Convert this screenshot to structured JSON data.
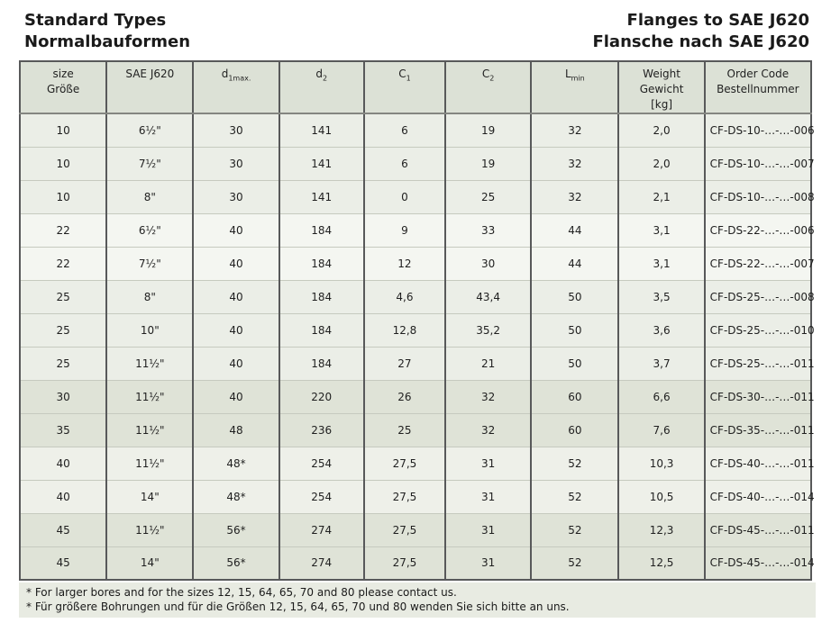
{
  "header": {
    "title_en": "Standard Types",
    "title_de": "Normalbauformen",
    "right_title_en": "Flanges to SAE J620",
    "right_title_de": "Flansche nach SAE J620"
  },
  "colors": {
    "header_bg": "#dce1d6",
    "border_dark": "#58595a",
    "row_separator": "#c6cabf",
    "footnote_bg": "#e8ebe2",
    "row_shades": {
      "light": "#ebeee7",
      "lighter": "#f4f6f1",
      "midlight": "#eef0e9",
      "dark": "#dfe3d7"
    }
  },
  "table": {
    "columns": [
      {
        "id": "size",
        "label_lines": [
          "size",
          "Größe"
        ]
      },
      {
        "id": "sae",
        "label_lines": [
          "SAE J620"
        ]
      },
      {
        "id": "d1max",
        "base": "d",
        "sub": "1max."
      },
      {
        "id": "d2",
        "base": "d",
        "sub": "2"
      },
      {
        "id": "c1",
        "base": "C",
        "sub": "1"
      },
      {
        "id": "c2",
        "base": "C",
        "sub": "2"
      },
      {
        "id": "lmin",
        "base": "L",
        "sub": "min"
      },
      {
        "id": "weight",
        "label_lines": [
          "Weight",
          "Gewicht",
          "[kg]"
        ]
      },
      {
        "id": "order",
        "label_lines": [
          "Order Code",
          "Bestellnummer"
        ]
      }
    ],
    "rows": [
      {
        "shade": "light",
        "cells": [
          "10",
          "6½\"",
          "30",
          "141",
          "6",
          "19",
          "32",
          "2,0",
          "CF-DS-10-…-…-006"
        ]
      },
      {
        "shade": "light",
        "cells": [
          "10",
          "7½\"",
          "30",
          "141",
          "6",
          "19",
          "32",
          "2,0",
          "CF-DS-10-…-…-007"
        ]
      },
      {
        "shade": "light",
        "cells": [
          "10",
          "8\"",
          "30",
          "141",
          "0",
          "25",
          "32",
          "2,1",
          "CF-DS-10-…-…-008"
        ]
      },
      {
        "shade": "lighter",
        "cells": [
          "22",
          "6½\"",
          "40",
          "184",
          "9",
          "33",
          "44",
          "3,1",
          "CF-DS-22-…-…-006"
        ]
      },
      {
        "shade": "lighter",
        "cells": [
          "22",
          "7½\"",
          "40",
          "184",
          "12",
          "30",
          "44",
          "3,1",
          "CF-DS-22-…-…-007"
        ]
      },
      {
        "shade": "light",
        "cells": [
          "25",
          "8\"",
          "40",
          "184",
          "4,6",
          "43,4",
          "50",
          "3,5",
          "CF-DS-25-…-…-008"
        ]
      },
      {
        "shade": "light",
        "cells": [
          "25",
          "10\"",
          "40",
          "184",
          "12,8",
          "35,2",
          "50",
          "3,6",
          "CF-DS-25-…-…-010"
        ]
      },
      {
        "shade": "light",
        "cells": [
          "25",
          "11½\"",
          "40",
          "184",
          "27",
          "21",
          "50",
          "3,7",
          "CF-DS-25-…-…-011"
        ]
      },
      {
        "shade": "dark",
        "cells": [
          "30",
          "11½\"",
          "40",
          "220",
          "26",
          "32",
          "60",
          "6,6",
          "CF-DS-30-…-…-011"
        ]
      },
      {
        "shade": "dark",
        "cells": [
          "35",
          "11½\"",
          "48",
          "236",
          "25",
          "32",
          "60",
          "7,6",
          "CF-DS-35-…-…-011"
        ]
      },
      {
        "shade": "midlight",
        "cells": [
          "40",
          "11½\"",
          "48*",
          "254",
          "27,5",
          "31",
          "52",
          "10,3",
          "CF-DS-40-…-…-011"
        ]
      },
      {
        "shade": "midlight",
        "cells": [
          "40",
          "14\"",
          "48*",
          "254",
          "27,5",
          "31",
          "52",
          "10,5",
          "CF-DS-40-…-…-014"
        ]
      },
      {
        "shade": "dark",
        "cells": [
          "45",
          "11½\"",
          "56*",
          "274",
          "27,5",
          "31",
          "52",
          "12,3",
          "CF-DS-45-…-…-011"
        ]
      },
      {
        "shade": "dark",
        "cells": [
          "45",
          "14\"",
          "56*",
          "274",
          "27,5",
          "31",
          "52",
          "12,5",
          "CF-DS-45-…-…-014"
        ]
      }
    ]
  },
  "footnotes": [
    "* For larger bores and for the sizes 12, 15, 64, 65, 70 and 80 please contact us.",
    "* Für größere Bohrungen und für die Größen 12, 15, 64, 65, 70 und 80 wenden Sie sich bitte an uns."
  ]
}
